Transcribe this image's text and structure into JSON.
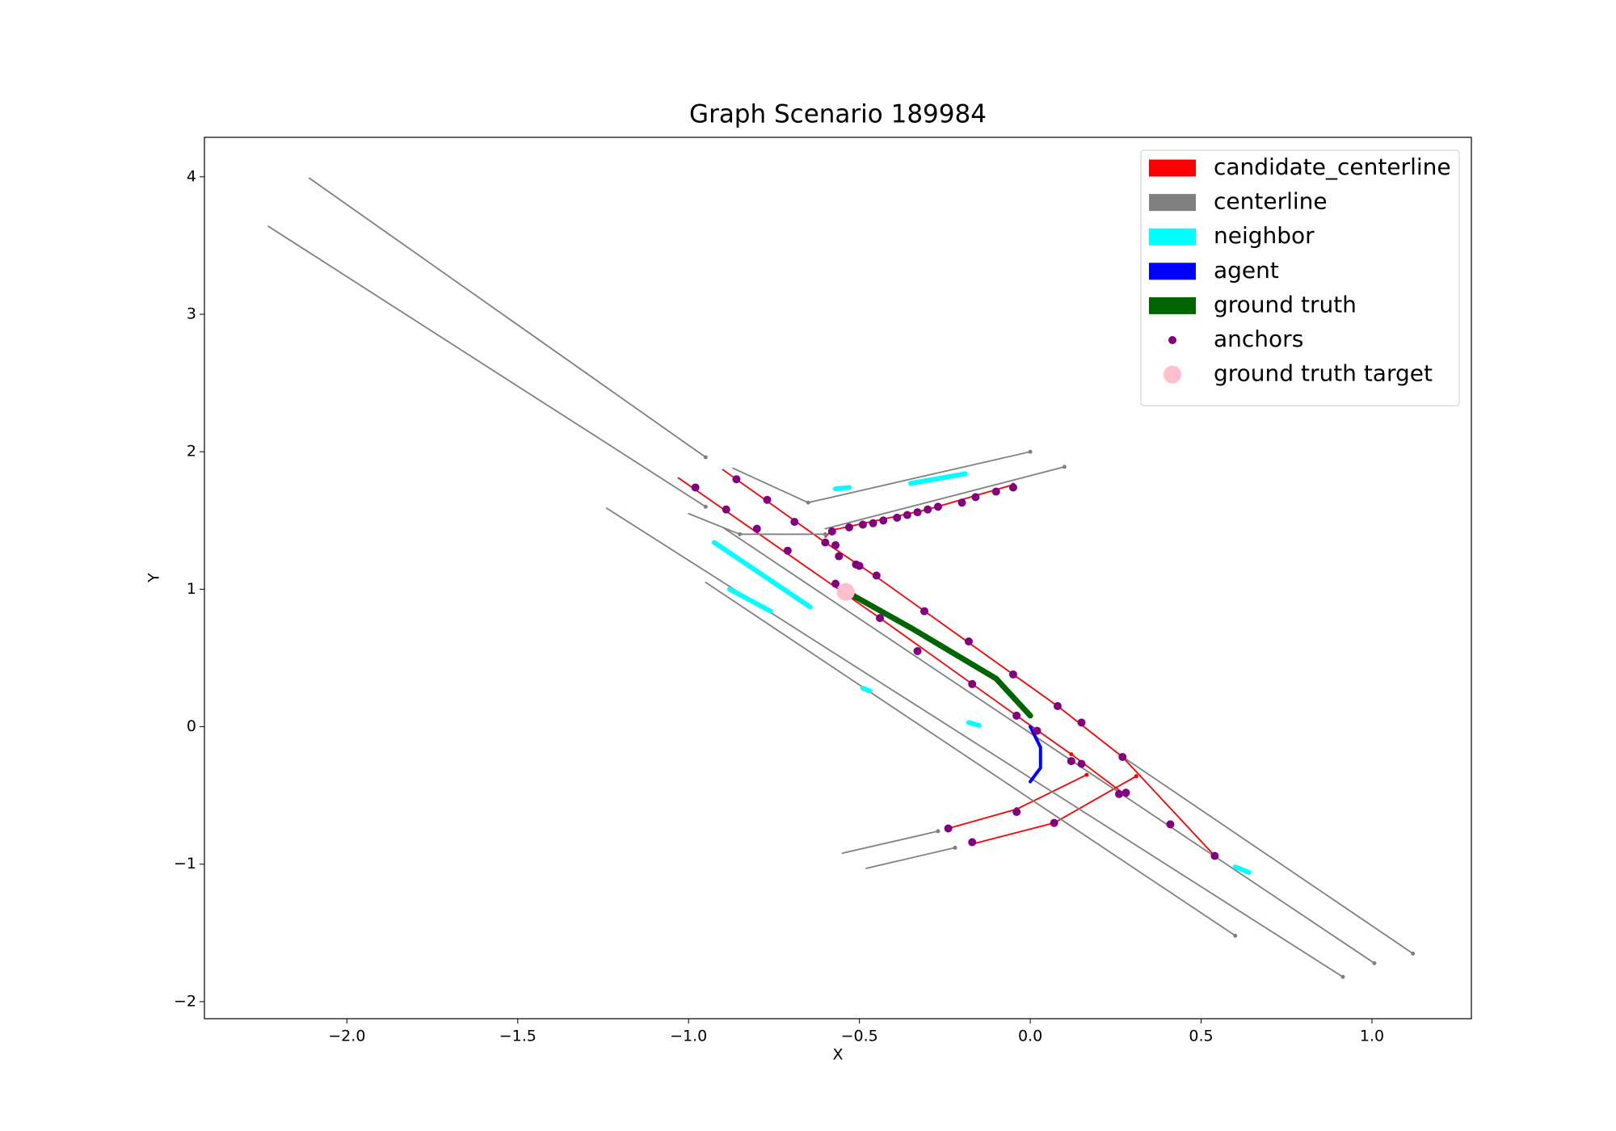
{
  "chart_data": {
    "type": "line",
    "title": "Graph Scenario 189984",
    "xlabel": "X",
    "ylabel": "Y",
    "xlim": [
      -2.417,
      1.291
    ],
    "ylim": [
      -2.124,
      4.287
    ],
    "xticks": [
      {
        "value": -2.0,
        "label": "−2.0"
      },
      {
        "value": -1.5,
        "label": "−1.5"
      },
      {
        "value": -1.0,
        "label": "−1.0"
      },
      {
        "value": -0.5,
        "label": "−0.5"
      },
      {
        "value": 0.0,
        "label": "0.0"
      },
      {
        "value": 0.5,
        "label": "0.5"
      },
      {
        "value": 1.0,
        "label": "1.0"
      }
    ],
    "yticks": [
      {
        "value": -2,
        "label": "−2"
      },
      {
        "value": -1,
        "label": "−1"
      },
      0,
      1,
      2,
      3,
      4
    ],
    "grid": false,
    "legend": "upper right",
    "series": [
      {
        "name": "candidate_centerline",
        "color": "#ff0000",
        "mode": "line",
        "linewidth": 1.8,
        "segments": [
          {
            "x": [
              -1.03,
              -0.44,
              -0.04,
              0.12,
              0.28
            ],
            "y": [
              1.81,
              0.79,
              0.08,
              -0.2,
              -0.5
            ]
          },
          {
            "x": [
              -0.9,
              -0.6,
              -0.45,
              0.08,
              0.27,
              0.54
            ],
            "y": [
              1.87,
              1.34,
              1.09,
              0.15,
              -0.22,
              -0.94
            ]
          },
          {
            "x": [
              -0.6,
              -0.58,
              -0.3,
              -0.05
            ],
            "y": [
              1.38,
              1.43,
              1.58,
              1.76
            ]
          },
          {
            "x": [
              -0.24,
              -0.04,
              0.165
            ],
            "y": [
              -0.74,
              -0.6,
              -0.35
            ]
          },
          {
            "x": [
              -0.165,
              0.07,
              0.31
            ],
            "y": [
              -0.85,
              -0.7,
              -0.36
            ]
          }
        ]
      },
      {
        "name": "centerline",
        "color": "#808080",
        "mode": "line",
        "linewidth": 1.8,
        "segments": [
          {
            "x": [
              -2.11,
              -0.95
            ],
            "y": [
              3.99,
              1.96
            ]
          },
          {
            "x": [
              -2.23,
              -0.95
            ],
            "y": [
              3.64,
              1.6
            ]
          },
          {
            "x": [
              -1.24,
              0.915
            ],
            "y": [
              1.59,
              -1.82
            ]
          },
          {
            "x": [
              -0.9,
              1.007
            ],
            "y": [
              1.45,
              -1.72
            ]
          },
          {
            "x": [
              -0.95,
              0.6
            ],
            "y": [
              1.05,
              -1.52
            ]
          },
          {
            "x": [
              0.265,
              1.12
            ],
            "y": [
              -0.21,
              -1.65
            ]
          },
          {
            "x": [
              -0.87,
              -0.65,
              0.0
            ],
            "y": [
              1.88,
              1.63,
              2.0
            ]
          },
          {
            "x": [
              -0.6,
              0.1
            ],
            "y": [
              1.44,
              1.89
            ]
          },
          {
            "x": [
              -1.0,
              -0.85,
              -0.6
            ],
            "y": [
              1.55,
              1.4,
              1.4
            ]
          },
          {
            "x": [
              -0.55,
              -0.27
            ],
            "y": [
              -0.92,
              -0.76
            ]
          },
          {
            "x": [
              -0.48,
              -0.22
            ],
            "y": [
              -1.03,
              -0.88
            ]
          }
        ]
      },
      {
        "name": "neighbor",
        "color": "#00ffff",
        "mode": "line",
        "linewidth": 6,
        "segments": [
          {
            "x": [
              -0.57,
              -0.53
            ],
            "y": [
              1.73,
              1.74
            ]
          },
          {
            "x": [
              -0.35,
              -0.19
            ],
            "y": [
              1.77,
              1.84
            ]
          },
          {
            "x": [
              -0.925,
              -0.644
            ],
            "y": [
              1.34,
              0.87
            ]
          },
          {
            "x": [
              -0.88,
              -0.76
            ],
            "y": [
              1.0,
              0.84
            ]
          },
          {
            "x": [
              -0.49,
              -0.47
            ],
            "y": [
              0.28,
              0.26
            ]
          },
          {
            "x": [
              -0.18,
              -0.15
            ],
            "y": [
              0.03,
              0.01
            ]
          },
          {
            "x": [
              0.6,
              0.64
            ],
            "y": [
              -1.02,
              -1.06
            ]
          }
        ]
      },
      {
        "name": "agent",
        "color": "#0000ff",
        "mode": "line",
        "linewidth": 4,
        "segments": [
          {
            "x": [
              0.0,
              0.03,
              0.03,
              0.0
            ],
            "y": [
              0.0,
              -0.15,
              -0.3,
              -0.4
            ]
          }
        ]
      },
      {
        "name": "ground truth",
        "color": "#006400",
        "mode": "line",
        "linewidth": 7,
        "segments": [
          {
            "x": [
              -0.53,
              -0.35,
              -0.1,
              0.0
            ],
            "y": [
              0.97,
              0.72,
              0.35,
              0.08
            ]
          }
        ]
      },
      {
        "name": "anchors",
        "color": "#800080",
        "mode": "scatter",
        "marker_size": 5,
        "segments": [
          {
            "x": [
              -0.98,
              -0.89,
              -0.8,
              -0.71,
              -0.57,
              -0.44,
              -0.33,
              -0.17,
              -0.04,
              0.12,
              0.15,
              0.26,
              0.28,
              -0.86,
              -0.77,
              -0.69,
              -0.6,
              -0.57,
              -0.56,
              -0.51,
              -0.5,
              -0.45,
              -0.31,
              -0.18,
              -0.05,
              0.08,
              0.15,
              0.27,
              0.41,
              0.54,
              -0.58,
              -0.53,
              -0.49,
              -0.46,
              -0.43,
              -0.39,
              -0.36,
              -0.33,
              -0.3,
              -0.27,
              -0.2,
              -0.16,
              -0.1,
              -0.05,
              -0.24,
              -0.17,
              -0.04,
              0.07,
              0.02
            ],
            "y": [
              1.74,
              1.58,
              1.44,
              1.28,
              1.04,
              0.79,
              0.55,
              0.31,
              0.08,
              -0.25,
              -0.27,
              -0.49,
              -0.48,
              1.8,
              1.65,
              1.49,
              1.34,
              1.32,
              1.24,
              1.18,
              1.17,
              1.1,
              0.84,
              0.62,
              0.38,
              0.15,
              0.03,
              -0.22,
              -0.71,
              -0.94,
              1.42,
              1.45,
              1.47,
              1.48,
              1.5,
              1.52,
              1.54,
              1.56,
              1.58,
              1.6,
              1.63,
              1.67,
              1.71,
              1.74,
              -0.74,
              -0.84,
              -0.62,
              -0.7,
              -0.03
            ]
          }
        ]
      },
      {
        "name": "ground truth target",
        "color": "#ffc0cb",
        "mode": "scatter",
        "marker_size": 11,
        "segments": [
          {
            "x": [
              -0.54
            ],
            "y": [
              0.98
            ]
          }
        ]
      }
    ]
  }
}
